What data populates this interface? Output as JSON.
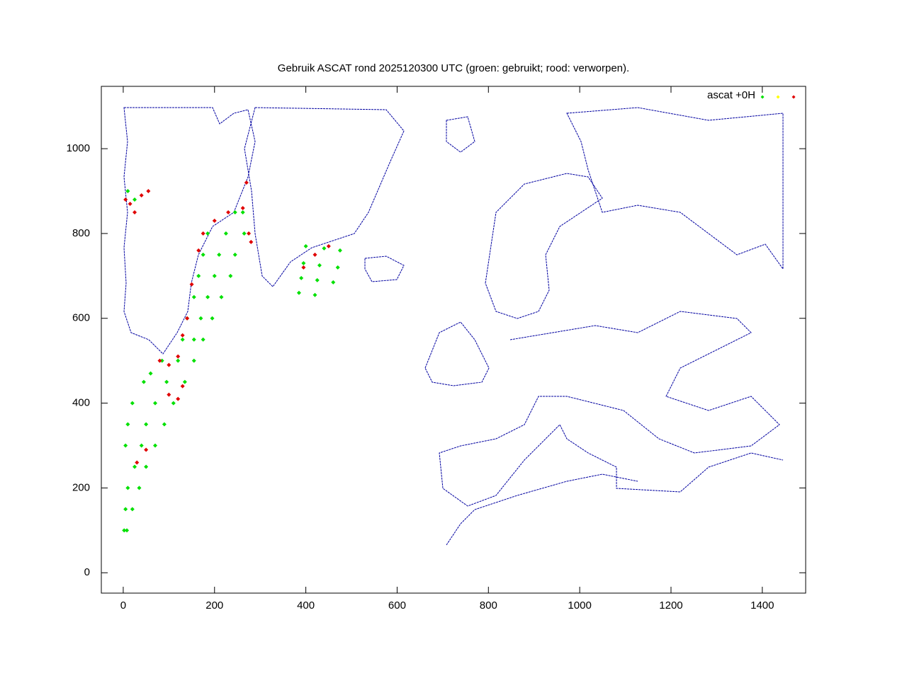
{
  "chart_data": {
    "type": "scatter",
    "title": "Gebruik ASCAT rond 2025120300 UTC (groen: gebruikt; rood: verworpen).",
    "legend_title": "ascat +0H",
    "xlim": [
      -48,
      1495
    ],
    "ylim": [
      -48,
      1147
    ],
    "xticks": [
      0,
      200,
      400,
      600,
      800,
      1000,
      1200,
      1400
    ],
    "yticks": [
      0,
      200,
      400,
      600,
      800,
      1000
    ],
    "series": [
      {
        "color": "#00e000",
        "x": [
          2,
          8,
          5,
          20,
          10,
          35,
          25,
          50,
          5,
          40,
          70,
          10,
          50,
          90,
          20,
          70,
          110,
          45,
          95,
          135,
          85,
          120,
          155,
          130,
          155,
          175,
          140,
          170,
          195,
          155,
          185,
          215,
          165,
          200,
          235,
          175,
          210,
          245,
          185,
          225,
          265,
          245,
          262,
          10,
          25,
          60,
          400,
          440,
          475,
          395,
          430,
          470,
          390,
          425,
          460,
          385,
          420
        ],
        "y": [
          100,
          100,
          150,
          150,
          200,
          200,
          250,
          250,
          300,
          300,
          300,
          350,
          350,
          350,
          400,
          400,
          400,
          450,
          450,
          450,
          500,
          500,
          500,
          550,
          550,
          550,
          600,
          600,
          600,
          650,
          650,
          650,
          700,
          700,
          700,
          750,
          750,
          750,
          800,
          800,
          800,
          850,
          850,
          900,
          880,
          470,
          770,
          765,
          760,
          730,
          725,
          720,
          695,
          690,
          685,
          660,
          655
        ]
      },
      {
        "color": "#ffff00",
        "x": [],
        "y": []
      },
      {
        "color": "#e00000",
        "x": [
          5,
          15,
          25,
          40,
          55,
          80,
          100,
          120,
          130,
          140,
          150,
          165,
          175,
          200,
          230,
          262,
          280,
          275,
          270,
          395,
          420,
          450,
          100,
          120,
          130,
          30,
          50
        ],
        "y": [
          880,
          870,
          850,
          890,
          900,
          500,
          490,
          510,
          560,
          600,
          680,
          760,
          800,
          830,
          850,
          860,
          780,
          800,
          920,
          720,
          750,
          770,
          420,
          410,
          440,
          260,
          290
        ]
      }
    ]
  }
}
